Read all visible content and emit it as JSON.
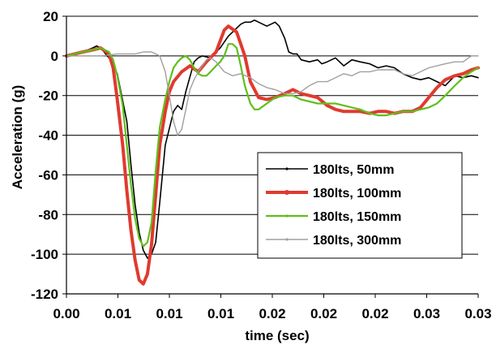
{
  "chart_data": {
    "type": "line",
    "title": "",
    "xlabel": "time (sec)",
    "ylabel": "Acceleration (g)",
    "xlim": [
      0,
      0.03
    ],
    "ylim": [
      -120,
      20
    ],
    "x_tick_labels": [
      "0.00",
      "0.01",
      "0.01",
      "0.01",
      "0.02",
      "0.02",
      "0.02",
      "0.03",
      "0.03"
    ],
    "y_ticks": [
      20,
      0,
      -20,
      -40,
      -60,
      -80,
      -100,
      -120
    ],
    "grid": "horizontal major gridlines at each y tick",
    "legend_position": "lower-right",
    "series": [
      {
        "name": "180lts, 50mm",
        "color": "#000000",
        "x": [
          0,
          0.0012,
          0.0019,
          0.0022,
          0.0025,
          0.0031,
          0.0037,
          0.0044,
          0.0047,
          0.005,
          0.0053,
          0.0056,
          0.0059,
          0.0062,
          0.0065,
          0.0068,
          0.0072,
          0.0078,
          0.0081,
          0.0084,
          0.0087,
          0.0093,
          0.0096,
          0.0099,
          0.0105,
          0.0112,
          0.0118,
          0.0124,
          0.0127,
          0.013,
          0.0134,
          0.0137,
          0.014,
          0.0146,
          0.0149,
          0.0152,
          0.0155,
          0.0159,
          0.0162,
          0.0165,
          0.0168,
          0.0171,
          0.0177,
          0.0183,
          0.0186,
          0.019,
          0.0196,
          0.0202,
          0.0208,
          0.0214,
          0.0221,
          0.0227,
          0.0233,
          0.0239,
          0.0245,
          0.0252,
          0.0258,
          0.0264,
          0.027,
          0.0276,
          0.0283,
          0.0289,
          0.0295,
          0.03
        ],
        "y": [
          0,
          2,
          4,
          5,
          4,
          -1,
          -9,
          -33,
          -55,
          -75,
          -89,
          -98,
          -102,
          -100,
          -94,
          -74,
          -45,
          -28,
          -25,
          -27,
          -18,
          -3,
          -1,
          0,
          -1,
          4,
          10,
          14,
          16,
          17,
          17,
          18,
          17,
          15,
          16,
          17,
          15,
          9,
          2,
          1,
          1,
          -2,
          -3,
          -2,
          -4,
          -3,
          -1,
          -5,
          -2,
          -3,
          -4,
          -6,
          -5,
          -6,
          -9,
          -11,
          -12,
          -11,
          -13,
          -15,
          -10,
          -11,
          -10,
          -11
        ]
      },
      {
        "name": "180lts, 100mm",
        "color": "#e03a2f",
        "x": [
          0,
          0.0012,
          0.0019,
          0.0025,
          0.0031,
          0.0034,
          0.0037,
          0.0041,
          0.0044,
          0.0047,
          0.005,
          0.0053,
          0.0056,
          0.0059,
          0.0062,
          0.0065,
          0.0068,
          0.0072,
          0.0075,
          0.0078,
          0.0084,
          0.009,
          0.0096,
          0.0102,
          0.0109,
          0.0115,
          0.0118,
          0.0124,
          0.013,
          0.0134,
          0.014,
          0.0146,
          0.0152,
          0.0159,
          0.0165,
          0.0171,
          0.0177,
          0.0183,
          0.019,
          0.0196,
          0.0202,
          0.0208,
          0.0214,
          0.0221,
          0.0227,
          0.0233,
          0.0239,
          0.0245,
          0.0252,
          0.0258,
          0.0264,
          0.027,
          0.0276,
          0.0283,
          0.0289,
          0.0295,
          0.03
        ],
        "y": [
          0,
          2,
          3,
          4,
          1,
          -6,
          -22,
          -45,
          -68,
          -88,
          -103,
          -113,
          -115,
          -110,
          -95,
          -70,
          -45,
          -28,
          -18,
          -13,
          -8,
          -5,
          -8,
          -3,
          2,
          13,
          15,
          12,
          0,
          -13,
          -21,
          -22,
          -21,
          -19,
          -17,
          -19,
          -20,
          -21,
          -25,
          -27,
          -28,
          -28,
          -28,
          -29,
          -28,
          -28,
          -29,
          -28,
          -28,
          -26,
          -21,
          -16,
          -12,
          -10,
          -9,
          -7,
          -6
        ]
      },
      {
        "name": "180lts, 150mm",
        "color": "#5fbf1b",
        "x": [
          0,
          0.0012,
          0.0019,
          0.0025,
          0.0031,
          0.0034,
          0.0037,
          0.0041,
          0.0044,
          0.0047,
          0.005,
          0.0053,
          0.0056,
          0.0059,
          0.0062,
          0.0065,
          0.0068,
          0.0072,
          0.0075,
          0.0078,
          0.0081,
          0.0084,
          0.0087,
          0.009,
          0.0093,
          0.0096,
          0.0099,
          0.0102,
          0.0105,
          0.0109,
          0.0112,
          0.0115,
          0.0118,
          0.0121,
          0.0124,
          0.0127,
          0.013,
          0.0134,
          0.0137,
          0.014,
          0.0146,
          0.0152,
          0.0159,
          0.0165,
          0.0171,
          0.0177,
          0.0183,
          0.019,
          0.0196,
          0.0202,
          0.0208,
          0.0214,
          0.0221,
          0.0227,
          0.0233,
          0.0239,
          0.0245,
          0.0252,
          0.0258,
          0.0264,
          0.027,
          0.0276,
          0.0283,
          0.0289,
          0.0295,
          0.03
        ],
        "y": [
          0,
          2,
          3,
          4,
          2,
          -2,
          -10,
          -25,
          -45,
          -65,
          -82,
          -92,
          -96,
          -94,
          -84,
          -58,
          -36,
          -22,
          -13,
          -6,
          -3,
          -1,
          0,
          -2,
          -6,
          -9,
          -10,
          -10,
          -8,
          -5,
          -3,
          0,
          6,
          6,
          4,
          -5,
          -15,
          -24,
          -27,
          -27,
          -24,
          -21,
          -20,
          -20,
          -22,
          -23,
          -24,
          -24,
          -24,
          -25,
          -26,
          -27,
          -29,
          -30,
          -30,
          -29,
          -28,
          -28,
          -27,
          -26,
          -24,
          -20,
          -15,
          -11,
          -8,
          -6
        ]
      },
      {
        "name": "180lts, 300mm",
        "color": "#a0a0a0",
        "x": [
          0,
          0.0012,
          0.0025,
          0.0037,
          0.005,
          0.0056,
          0.0062,
          0.0068,
          0.0072,
          0.0075,
          0.0078,
          0.0081,
          0.0084,
          0.0087,
          0.009,
          0.0093,
          0.0096,
          0.0099,
          0.0102,
          0.0105,
          0.0109,
          0.0115,
          0.0121,
          0.0127,
          0.0134,
          0.014,
          0.0146,
          0.0152,
          0.0159,
          0.0165,
          0.0171,
          0.0177,
          0.0183,
          0.019,
          0.0196,
          0.0202,
          0.0208,
          0.0214,
          0.0221,
          0.0227,
          0.0233,
          0.0239,
          0.0245,
          0.0252,
          0.0258,
          0.0264,
          0.027,
          0.0276,
          0.0283,
          0.0289,
          0.0295,
          0.03
        ],
        "y": [
          0,
          0,
          0,
          1,
          1,
          2,
          2,
          0,
          -8,
          -20,
          -33,
          -40,
          -37,
          -27,
          -17,
          -12,
          -8,
          -5,
          -2,
          -1,
          -3,
          -8,
          -10,
          -9,
          -11,
          -14,
          -16,
          -17,
          -19,
          -19,
          -18,
          -15,
          -13,
          -13,
          -11,
          -9,
          -10,
          -8,
          -8,
          -7,
          -7,
          -7,
          -9,
          -10,
          -8,
          -6,
          -5,
          -4,
          -3,
          -3,
          0,
          0
        ]
      }
    ]
  }
}
